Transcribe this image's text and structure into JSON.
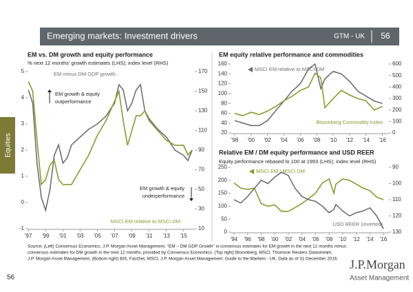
{
  "header": {
    "title": "Emerging markets: Investment drivers",
    "tag": "GTM - UK",
    "page": "56"
  },
  "side_tab": "Equities",
  "chart_data": [
    {
      "type": "line",
      "title": "EM vs. DM growth and equity performance",
      "subtitle": "% next 12 months' growth estimates (LHS); index level (RHS)",
      "x": [
        1997,
        1997.5,
        1998,
        1998.5,
        1999,
        1999.5,
        2000,
        2000.5,
        2001,
        2001.5,
        2002,
        2003,
        2004,
        2005,
        2006,
        2007,
        2007.5,
        2008,
        2008.5,
        2009,
        2009.5,
        2010,
        2010.5,
        2011,
        2012,
        2013,
        2014,
        2015,
        2015.5,
        2016
      ],
      "xlim": [
        1996.9,
        2016.3
      ],
      "xticks": [
        {
          "value": 1997,
          "label": "'97"
        },
        {
          "value": 1999,
          "label": "'99"
        },
        {
          "value": 2001,
          "label": "'01"
        },
        {
          "value": 2003,
          "label": "'03"
        },
        {
          "value": 2005,
          "label": "'05"
        },
        {
          "value": 2007,
          "label": "'07"
        },
        {
          "value": 2009,
          "label": "'09"
        },
        {
          "value": 2011,
          "label": "'11"
        },
        {
          "value": 2013,
          "label": "'13"
        },
        {
          "value": 2015,
          "label": "'15"
        }
      ],
      "ylim": [
        -1,
        5
      ],
      "yticks": [
        -1,
        0,
        1,
        2,
        3,
        4,
        5
      ],
      "y2lim": [
        10,
        170
      ],
      "y2ticks": [
        10,
        30,
        50,
        70,
        90,
        110,
        130,
        150,
        170
      ],
      "series": [
        {
          "name": "EM minus DM GDP growth",
          "color": "#6d6e71",
          "values": [
            4.3,
            3.8,
            1.5,
            0.2,
            -0.3,
            0.5,
            1.8,
            2.2,
            1.5,
            1.7,
            2.2,
            2.5,
            2.8,
            3.0,
            3.3,
            3.8,
            4.5,
            4.3,
            3.5,
            3.8,
            4.3,
            4.5,
            3.5,
            3.2,
            2.8,
            2.5,
            2.0,
            1.8,
            1.6,
            2.0
          ]
        },
        {
          "name": "MSCI EM relative to MSCI DM",
          "color": "#8a9a2c",
          "axis": "y2",
          "values": [
            160,
            150,
            100,
            55,
            60,
            75,
            80,
            60,
            55,
            55,
            55,
            70,
            85,
            105,
            120,
            140,
            150,
            120,
            95,
            110,
            125,
            125,
            130,
            120,
            110,
            100,
            95,
            95,
            85,
            90
          ]
        }
      ],
      "annotations": [
        [
          "EM growth & equity",
          "outperformance"
        ],
        [
          "EM growth & equity",
          "underperformance"
        ]
      ]
    },
    {
      "type": "line",
      "title": "EM equity relative performance and commodities",
      "x": [
        1998,
        1999,
        2000,
        2001,
        2002,
        2003,
        2004,
        2005,
        2006,
        2007,
        2007.8,
        2008.5,
        2009,
        2010,
        2011,
        2012,
        2013,
        2014,
        2015,
        2016
      ],
      "xlim": [
        1997.5,
        2016.8
      ],
      "xticks": [
        {
          "value": 1998,
          "label": "'98"
        },
        {
          "value": 2000,
          "label": "'00"
        },
        {
          "value": 2002,
          "label": "'02"
        },
        {
          "value": 2004,
          "label": "'04"
        },
        {
          "value": 2006,
          "label": "'06"
        },
        {
          "value": 2008,
          "label": "'08"
        },
        {
          "value": 2010,
          "label": "'10"
        },
        {
          "value": 2012,
          "label": "'12"
        },
        {
          "value": 2014,
          "label": "'14"
        },
        {
          "value": 2016,
          "label": "'16"
        }
      ],
      "ylim": [
        20,
        160
      ],
      "yticks": [
        20,
        40,
        60,
        80,
        100,
        120,
        140,
        160
      ],
      "y2lim": [
        0,
        600
      ],
      "y2ticks": [
        0,
        100,
        200,
        300,
        400,
        500,
        600
      ],
      "series": [
        {
          "name": "MSCI EM relative to MSCI DM",
          "color": "#6d6e71",
          "values": [
            45,
            40,
            35,
            35,
            45,
            65,
            85,
            105,
            120,
            150,
            160,
            110,
            130,
            145,
            140,
            125,
            105,
            95,
            85,
            80
          ]
        },
        {
          "name": "Bloomberg Commodity Index",
          "color": "#8a9a2c",
          "axis": "y2",
          "values": [
            170,
            150,
            180,
            160,
            190,
            230,
            280,
            320,
            370,
            400,
            520,
            480,
            220,
            300,
            370,
            330,
            300,
            280,
            200,
            230
          ]
        }
      ]
    },
    {
      "type": "line",
      "title": "Relative EM / DM equity performance and USD REER",
      "subtitle": "Equity performance rebased to 100 at 1993 (LHS); index level (RHS)",
      "x": [
        1994,
        1995,
        1996,
        1997,
        1998,
        1999,
        2000,
        2001,
        2002,
        2003,
        2004,
        2005,
        2006,
        2007,
        2008,
        2008.7,
        2009,
        2010,
        2011,
        2012,
        2013,
        2014,
        2015,
        2016
      ],
      "xlim": [
        1993.5,
        2016.8
      ],
      "xticks": [
        {
          "value": 1994,
          "label": "'94"
        },
        {
          "value": 1996,
          "label": "'96"
        },
        {
          "value": 1998,
          "label": "'98"
        },
        {
          "value": 2000,
          "label": "'00"
        },
        {
          "value": 2002,
          "label": "'02"
        },
        {
          "value": 2004,
          "label": "'04"
        },
        {
          "value": 2006,
          "label": "'06"
        },
        {
          "value": 2008,
          "label": "'08"
        },
        {
          "value": 2010,
          "label": "'10"
        },
        {
          "value": 2012,
          "label": "'12"
        },
        {
          "value": 2014,
          "label": "'14"
        },
        {
          "value": 2016,
          "label": "'16"
        }
      ],
      "ylim": [
        0,
        250
      ],
      "yticks": [
        0,
        50,
        100,
        150,
        200,
        250
      ],
      "y2lim": [
        130,
        90
      ],
      "y2ticks": [
        90,
        100,
        110,
        120,
        130
      ],
      "series": [
        {
          "name": "MSCI EM / MSCI DM",
          "color": "#8a9a2c",
          "values": [
            190,
            170,
            165,
            170,
            110,
            100,
            105,
            80,
            80,
            95,
            110,
            130,
            150,
            190,
            205,
            150,
            185,
            205,
            200,
            185,
            170,
            160,
            135,
            125
          ]
        },
        {
          "name": "USD REER (inverted)",
          "color": "#6d6e71",
          "axis": "y2",
          "values": [
            110,
            112,
            108,
            103,
            98,
            100,
            96,
            93,
            95,
            103,
            108,
            110,
            111,
            114,
            118,
            116,
            113,
            117,
            120,
            118,
            117,
            115,
            120,
            128
          ]
        }
      ]
    }
  ],
  "source": [
    "Source: (Left) Consensus Economics, J.P. Morgan Asset Management. \"EM – DM GDP Growth\" is consensus estimates for EM growth in the next 12 months minus",
    "consensus estimates for DM growth in the next 12 months, provided by Consensus Economics. (Top right) Bloomberg, MSCI, Thomson Reuters Datastream,",
    "J.P. Morgan Asset Management. (Bottom right) BIS, FactSet, MSCI, J.P. Morgan Asset Management. Guide to the Markets - UK. Data as of 31 December 2016."
  ],
  "footer": {
    "page": "56",
    "brand": "J.P.Morgan",
    "unit": "Asset Management"
  }
}
